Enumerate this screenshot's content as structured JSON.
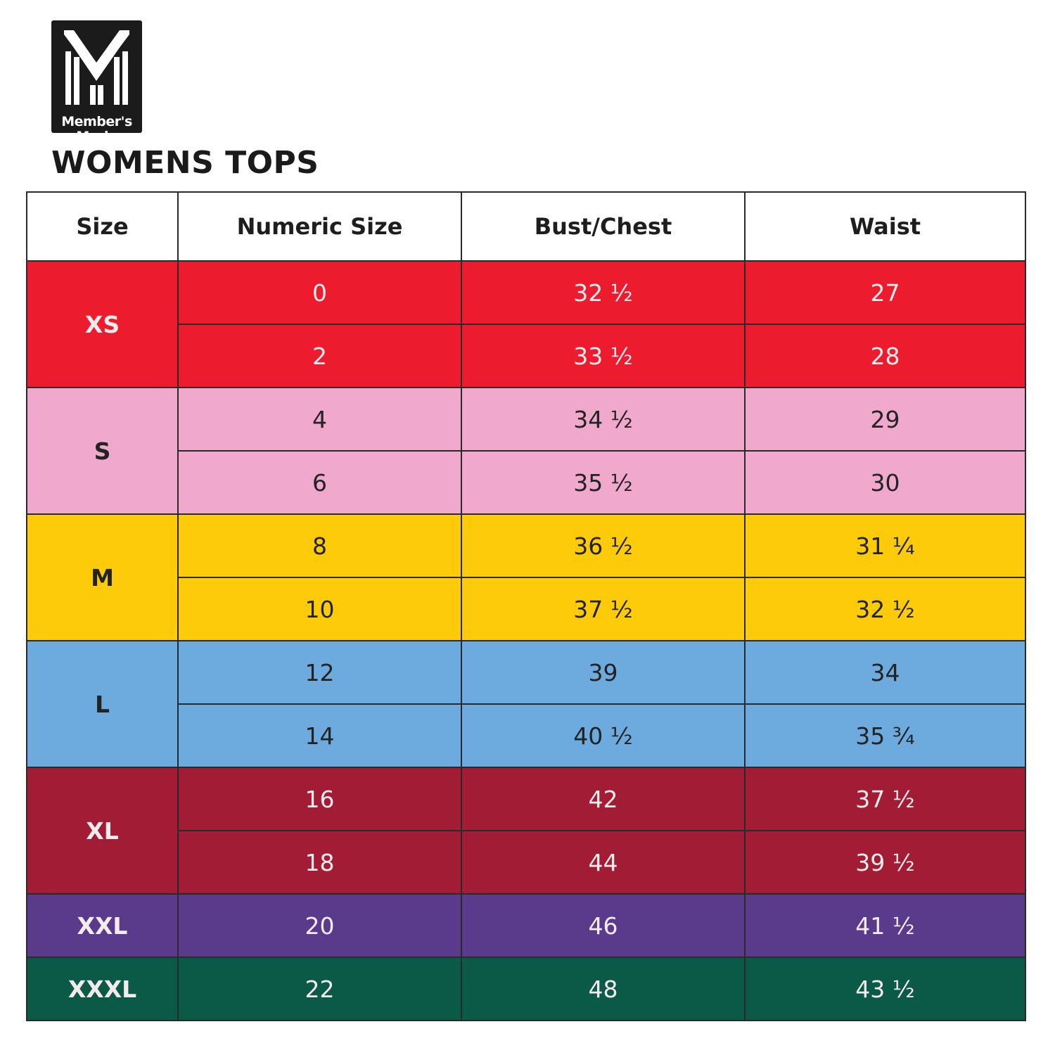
{
  "logo": {
    "line1": "Member's",
    "line2": "Mark",
    "trademark": "™",
    "icon": "members-mark-m-logo"
  },
  "title": "WOMENS TOPS",
  "table": {
    "headers": [
      "Size",
      "Numeric Size",
      "Bust/Chest",
      "Waist"
    ],
    "groups": [
      {
        "size": "XS",
        "color": "#ec1c2e",
        "text": "light-on-dark",
        "rows": [
          {
            "numeric": "0",
            "bust": "32 ½",
            "waist": "27"
          },
          {
            "numeric": "2",
            "bust": "33 ½",
            "waist": "28"
          }
        ]
      },
      {
        "size": "S",
        "color": "#f0a8cc",
        "text": "dark-on-light",
        "rows": [
          {
            "numeric": "4",
            "bust": "34 ½",
            "waist": "29"
          },
          {
            "numeric": "6",
            "bust": "35 ½",
            "waist": "30"
          }
        ]
      },
      {
        "size": "M",
        "color": "#fdcb0a",
        "text": "dark-on-light",
        "rows": [
          {
            "numeric": "8",
            "bust": "36 ½",
            "waist": "31 ¼"
          },
          {
            "numeric": "10",
            "bust": "37 ½",
            "waist": "32 ½"
          }
        ]
      },
      {
        "size": "L",
        "color": "#6dabdf",
        "text": "dark-on-light",
        "rows": [
          {
            "numeric": "12",
            "bust": "39",
            "waist": "34"
          },
          {
            "numeric": "14",
            "bust": "40 ½",
            "waist": "35 ¾"
          }
        ]
      },
      {
        "size": "XL",
        "color": "#a31c36",
        "text": "light-on-dark",
        "rows": [
          {
            "numeric": "16",
            "bust": "42",
            "waist": "37 ½"
          },
          {
            "numeric": "18",
            "bust": "44",
            "waist": "39 ½"
          }
        ]
      },
      {
        "size": "XXL",
        "color": "#5a3a8a",
        "text": "light-on-dark",
        "rows": [
          {
            "numeric": "20",
            "bust": "46",
            "waist": "41 ½"
          }
        ]
      },
      {
        "size": "XXXL",
        "color": "#0b5a48",
        "text": "light-on-dark",
        "rows": [
          {
            "numeric": "22",
            "bust": "48",
            "waist": "43 ½"
          }
        ]
      }
    ]
  }
}
